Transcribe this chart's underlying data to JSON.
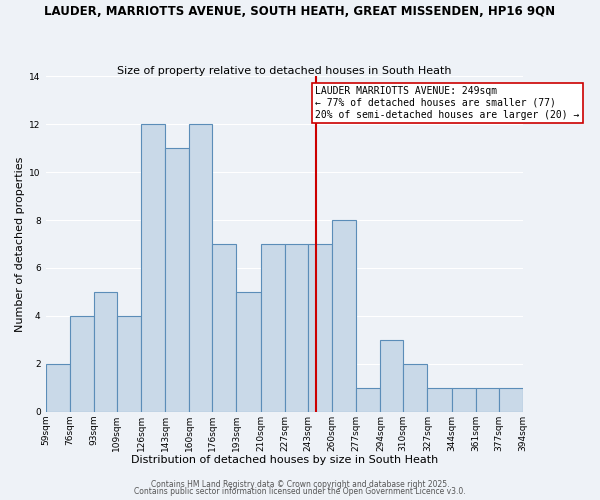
{
  "title": "LAUDER, MARRIOTTS AVENUE, SOUTH HEATH, GREAT MISSENDEN, HP16 9QN",
  "subtitle": "Size of property relative to detached houses in South Heath",
  "xlabel": "Distribution of detached houses by size in South Heath",
  "ylabel": "Number of detached properties",
  "bar_edges": [
    59,
    76,
    93,
    109,
    126,
    143,
    160,
    176,
    193,
    210,
    227,
    243,
    260,
    277,
    294,
    310,
    327,
    344,
    361,
    377,
    394
  ],
  "bar_heights": [
    2,
    4,
    5,
    4,
    12,
    11,
    12,
    7,
    5,
    7,
    7,
    7,
    8,
    1,
    3,
    2,
    1,
    1,
    1,
    1
  ],
  "bar_color": "#c9d9e8",
  "bar_edgecolor": "#5b8db8",
  "vline_x": 249,
  "vline_color": "#cc0000",
  "annotation_line1": "LAUDER MARRIOTTS AVENUE: 249sqm",
  "annotation_line2": "← 77% of detached houses are smaller (77)",
  "annotation_line3": "20% of semi-detached houses are larger (20) →",
  "annotation_box_edgecolor": "#cc0000",
  "annotation_box_facecolor": "#ffffff",
  "ylim": [
    0,
    14
  ],
  "yticks": [
    0,
    2,
    4,
    6,
    8,
    10,
    12,
    14
  ],
  "tick_labels": [
    "59sqm",
    "76sqm",
    "93sqm",
    "109sqm",
    "126sqm",
    "143sqm",
    "160sqm",
    "176sqm",
    "193sqm",
    "210sqm",
    "227sqm",
    "243sqm",
    "260sqm",
    "277sqm",
    "294sqm",
    "310sqm",
    "327sqm",
    "344sqm",
    "361sqm",
    "377sqm",
    "394sqm"
  ],
  "footer1": "Contains HM Land Registry data © Crown copyright and database right 2025.",
  "footer2": "Contains public sector information licensed under the Open Government Licence v3.0.",
  "background_color": "#eef2f7",
  "grid_color": "#ffffff",
  "title_fontsize": 8.5,
  "subtitle_fontsize": 8,
  "axis_label_fontsize": 8,
  "tick_fontsize": 6.5,
  "annotation_fontsize": 7,
  "footer_fontsize": 5.5
}
